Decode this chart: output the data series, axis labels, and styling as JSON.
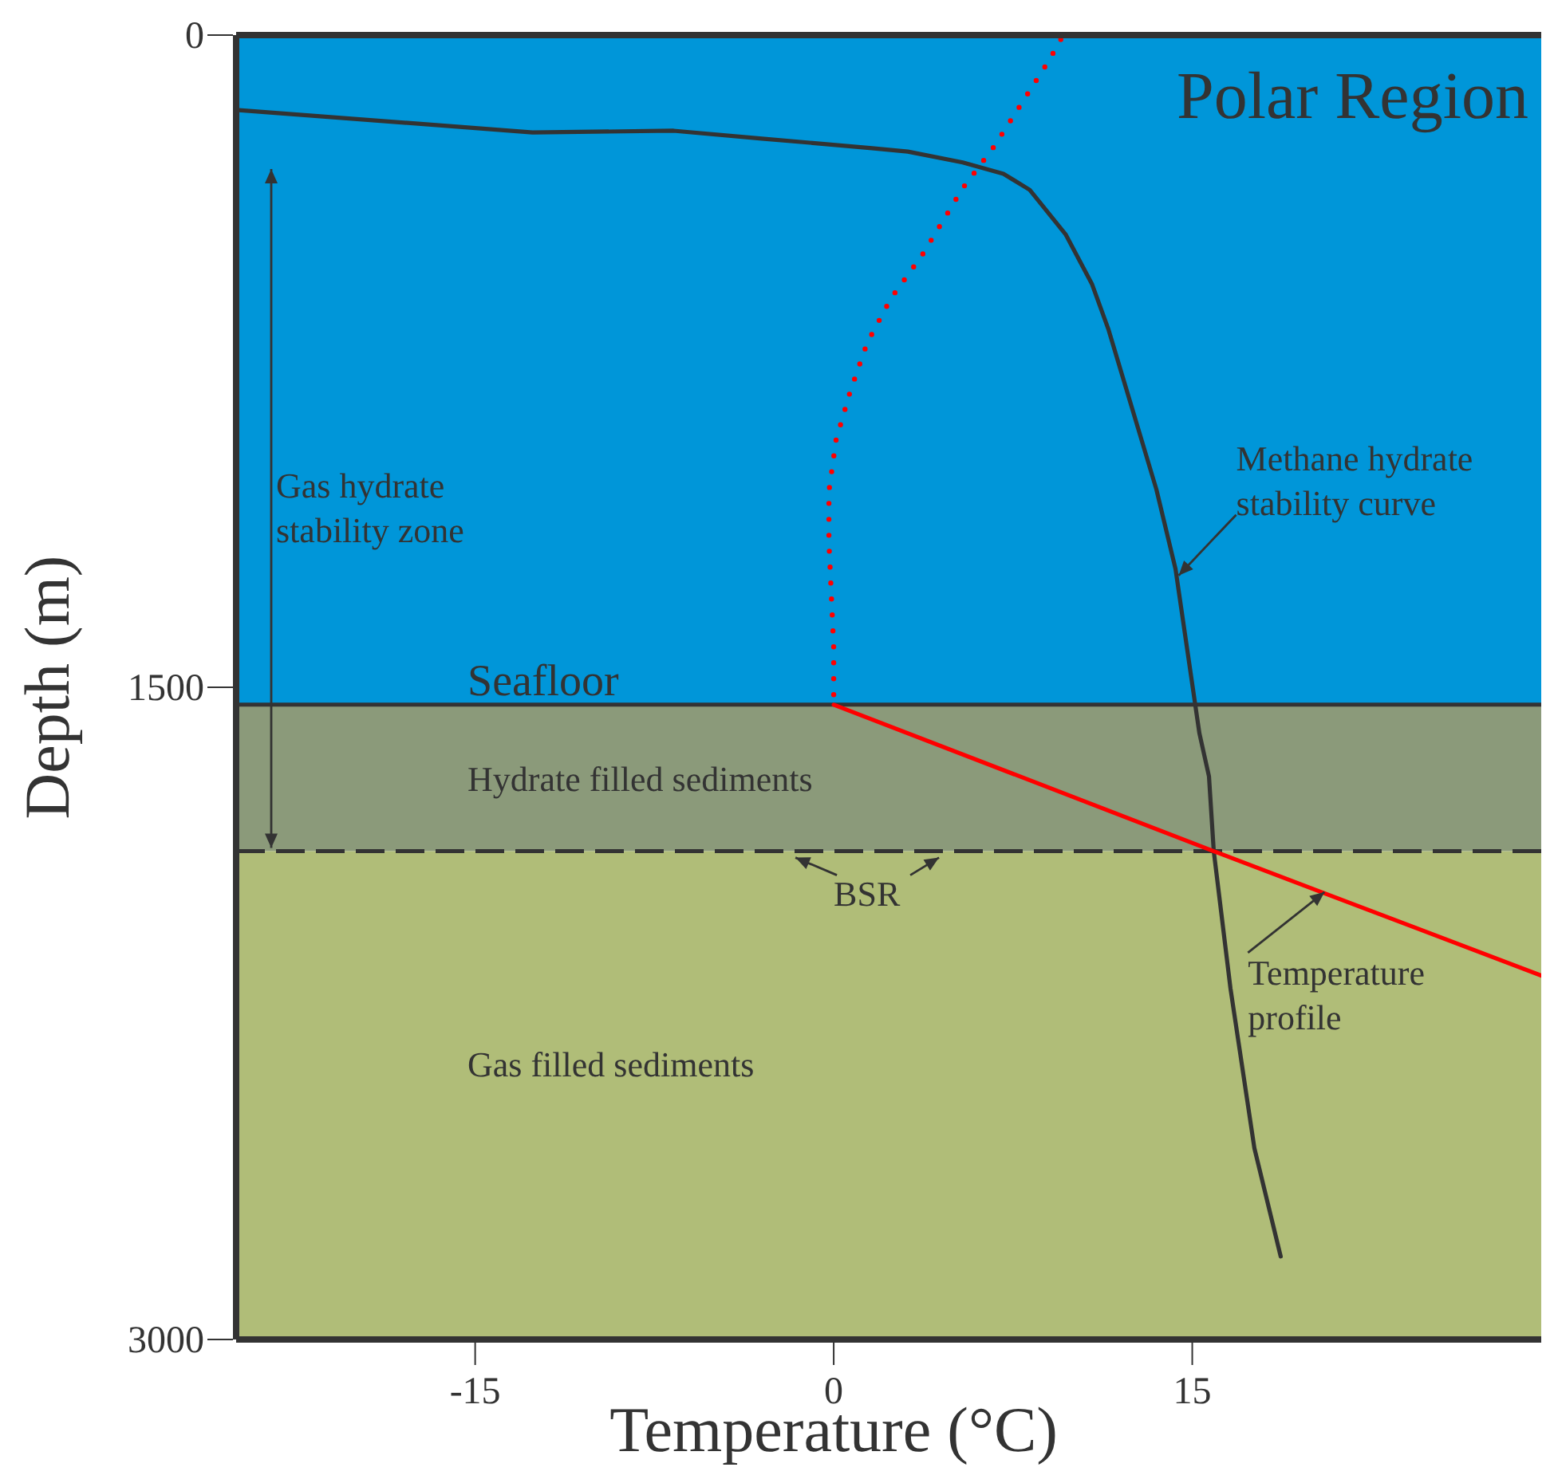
{
  "chart_data": {
    "type": "line",
    "title": "Polar Region",
    "xlabel": "Temperature (°C)",
    "ylabel": "Depth (m)",
    "xlim": [
      -25,
      29.6
    ],
    "xticks": [
      -15,
      0,
      15
    ],
    "ylim": [
      3000,
      0
    ],
    "yticks": [
      0,
      1500,
      3000
    ],
    "grid": false,
    "marker": "none",
    "series": [
      {
        "color": "#333333",
        "line_style": "solid",
        "x": [
          -25,
          -12.6,
          -6.7,
          -3.0,
          1.6,
          3.1,
          5.4,
          7.1,
          8.2,
          9.7,
          10.8,
          11.5,
          13.5,
          14.3,
          15.3,
          15.7,
          15.9,
          16.6,
          17.6,
          18.7
        ],
        "values": [
          172,
          224,
          220,
          238,
          260,
          268,
          293,
          319,
          356,
          458,
          572,
          678,
          1045,
          1228,
          1606,
          1705,
          1877,
          2193,
          2560,
          2809
        ]
      },
      {
        "color": "#ff0000",
        "line_style": "dotted",
        "x": [
          9.5,
          9.0,
          6.7,
          5.4,
          3.7,
          2.4,
          1.4,
          0.7,
          0.1,
          -0.2,
          -0.2,
          -0.1,
          0,
          0
        ],
        "values": [
          10,
          59,
          257,
          352,
          506,
          605,
          708,
          818,
          931,
          1049,
          1166,
          1287,
          1408,
          1540
        ]
      },
      {
        "color": "#ff0000",
        "line_style": "solid",
        "x": [
          0,
          15.9,
          20.4,
          29.6
        ],
        "values": [
          1540,
          1877,
          1971,
          2163
        ]
      }
    ],
    "bands": [
      {
        "axis": "y",
        "from": 0,
        "to": 1540,
        "color": "#0096d9"
      },
      {
        "axis": "y",
        "from": 1540,
        "to": 1877,
        "color": "#8b9a7a",
        "label": "Hydrate filled sediments"
      },
      {
        "axis": "y",
        "from": 1877,
        "to": 3000,
        "color": "#b0bd78",
        "label": "Gas filled sediments"
      }
    ],
    "ref_lines": [
      {
        "axis": "y",
        "value": 1540,
        "label": "Seafloor",
        "line_style": "solid",
        "color": "#333333"
      },
      {
        "axis": "y",
        "value": 1877,
        "label": "BSR",
        "line_style": "dashed",
        "color": "#333333"
      }
    ],
    "annotations": [
      "Gas hydrate stability zone",
      {
        "text": "Methane hydrate stability curve",
        "x": 14.3,
        "y": 1228
      },
      {
        "text": "Temperature profile",
        "x": 20.4,
        "y": 1971
      }
    ]
  }
}
